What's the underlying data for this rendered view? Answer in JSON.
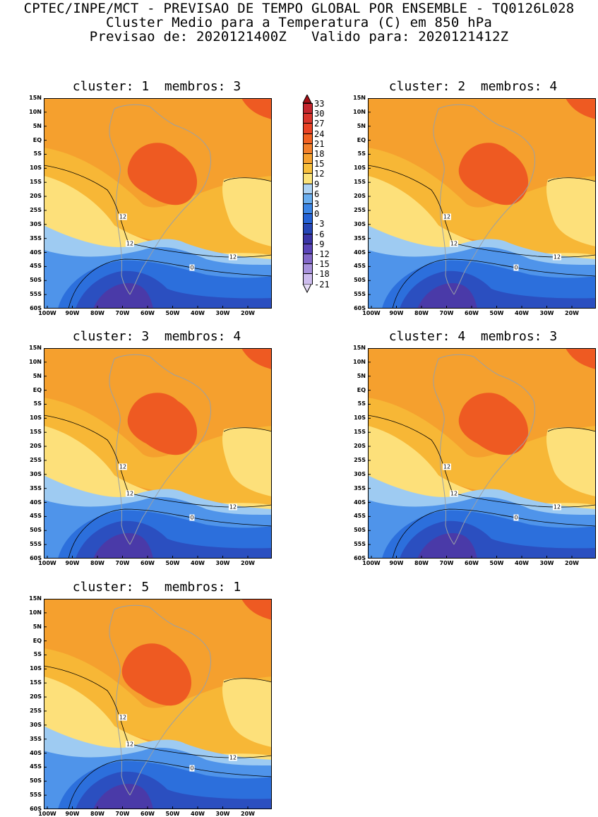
{
  "header": {
    "line1": "CPTEC/INPE/MCT - PREVISAO DE TEMPO GLOBAL POR ENSEMBLE - TQ0126L028",
    "line2": "Cluster Medio para a Temperatura (C) em 850 hPa",
    "line3": "Previsao de: 2020121400Z   Valido para: 2020121412Z"
  },
  "panels": [
    {
      "title": "cluster: 1  membros: 3"
    },
    {
      "title": "cluster: 2  membros: 4"
    },
    {
      "title": "cluster: 3  membros: 4"
    },
    {
      "title": "cluster: 4  membros: 3"
    },
    {
      "title": "cluster: 5  membros: 1"
    }
  ],
  "lat_labels": [
    "15N",
    "10N",
    "5N",
    "EQ",
    "5S",
    "10S",
    "15S",
    "20S",
    "25S",
    "30S",
    "35S",
    "40S",
    "45S",
    "50S",
    "55S",
    "60S"
  ],
  "lon_labels": [
    "100W",
    "90W",
    "80W",
    "70W",
    "60W",
    "50W",
    "40W",
    "30W",
    "20W"
  ],
  "contour_labels": [
    "12",
    "0"
  ],
  "colorbar": {
    "labels": [
      "33",
      "30",
      "27",
      "24",
      "21",
      "18",
      "15",
      "12",
      "9",
      "6",
      "3",
      "0",
      "-3",
      "-6",
      "-9",
      "-12",
      "-15",
      "-18",
      "-21"
    ],
    "colors": [
      "#a50f15",
      "#c4262e",
      "#d9352c",
      "#ea4325",
      "#f26122",
      "#f3802b",
      "#f6a230",
      "#f8bf3c",
      "#fce37a",
      "#aed3f4",
      "#6aaeef",
      "#3c86e6",
      "#2563d6",
      "#2646b6",
      "#3b35a6",
      "#5b45b8",
      "#8368c8",
      "#a892dc",
      "#cdbcee",
      "#e6dcf7"
    ]
  },
  "colors": {
    "warm_core": "#ee5a22",
    "orange": "#f5a02e",
    "orange_light": "#f7b736",
    "yellow": "#fde07a",
    "light_blue": "#9ecbf2",
    "blue": "#4f94ea",
    "blue_mid": "#2c6fdc",
    "blue_dark": "#2b4fc0",
    "purple": "#4a3aa8",
    "land_line": "#9aa0a6"
  }
}
